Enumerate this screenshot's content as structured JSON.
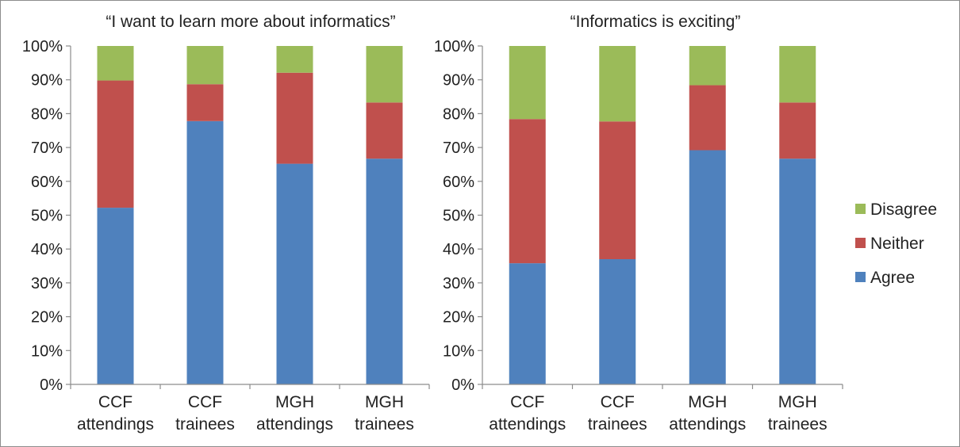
{
  "chart_data": [
    {
      "type": "bar",
      "stacked": true,
      "title": "“I want to learn more about informatics”",
      "categories": [
        [
          "CCF",
          "attendings"
        ],
        [
          "CCF",
          "trainees"
        ],
        [
          "MGH",
          "attendings"
        ],
        [
          "MGH",
          "trainees"
        ]
      ],
      "ylim": [
        0,
        100
      ],
      "yticks": [
        "0%",
        "10%",
        "20%",
        "30%",
        "40%",
        "50%",
        "60%",
        "70%",
        "80%",
        "90%",
        "100%"
      ],
      "grid": false,
      "series": [
        {
          "name": "Agree",
          "color": "#4f81bd",
          "values": [
            52.2,
            77.8,
            65.2,
            66.7
          ]
        },
        {
          "name": "Neither",
          "color": "#c0504d",
          "values": [
            37.6,
            10.9,
            26.9,
            16.6
          ]
        },
        {
          "name": "Disagree",
          "color": "#9bbb59",
          "values": [
            10.2,
            11.3,
            7.9,
            16.7
          ]
        }
      ]
    },
    {
      "type": "bar",
      "stacked": true,
      "title": "“Informatics is exciting”",
      "categories": [
        [
          "CCF",
          "attendings"
        ],
        [
          "CCF",
          "trainees"
        ],
        [
          "MGH",
          "attendings"
        ],
        [
          "MGH",
          "trainees"
        ]
      ],
      "ylim": [
        0,
        100
      ],
      "yticks": [
        "0%",
        "10%",
        "20%",
        "30%",
        "40%",
        "50%",
        "60%",
        "70%",
        "80%",
        "90%",
        "100%"
      ],
      "grid": false,
      "legend_position": "right",
      "series": [
        {
          "name": "Agree",
          "color": "#4f81bd",
          "values": [
            35.8,
            37.0,
            69.2,
            66.7
          ]
        },
        {
          "name": "Neither",
          "color": "#c0504d",
          "values": [
            42.6,
            40.7,
            19.2,
            16.6
          ]
        },
        {
          "name": "Disagree",
          "color": "#9bbb59",
          "values": [
            21.6,
            22.3,
            11.6,
            16.7
          ]
        }
      ]
    }
  ],
  "legend": {
    "items": [
      {
        "name": "Disagree",
        "color": "#9bbb59"
      },
      {
        "name": "Neither",
        "color": "#c0504d"
      },
      {
        "name": "Agree",
        "color": "#4f81bd"
      }
    ]
  }
}
